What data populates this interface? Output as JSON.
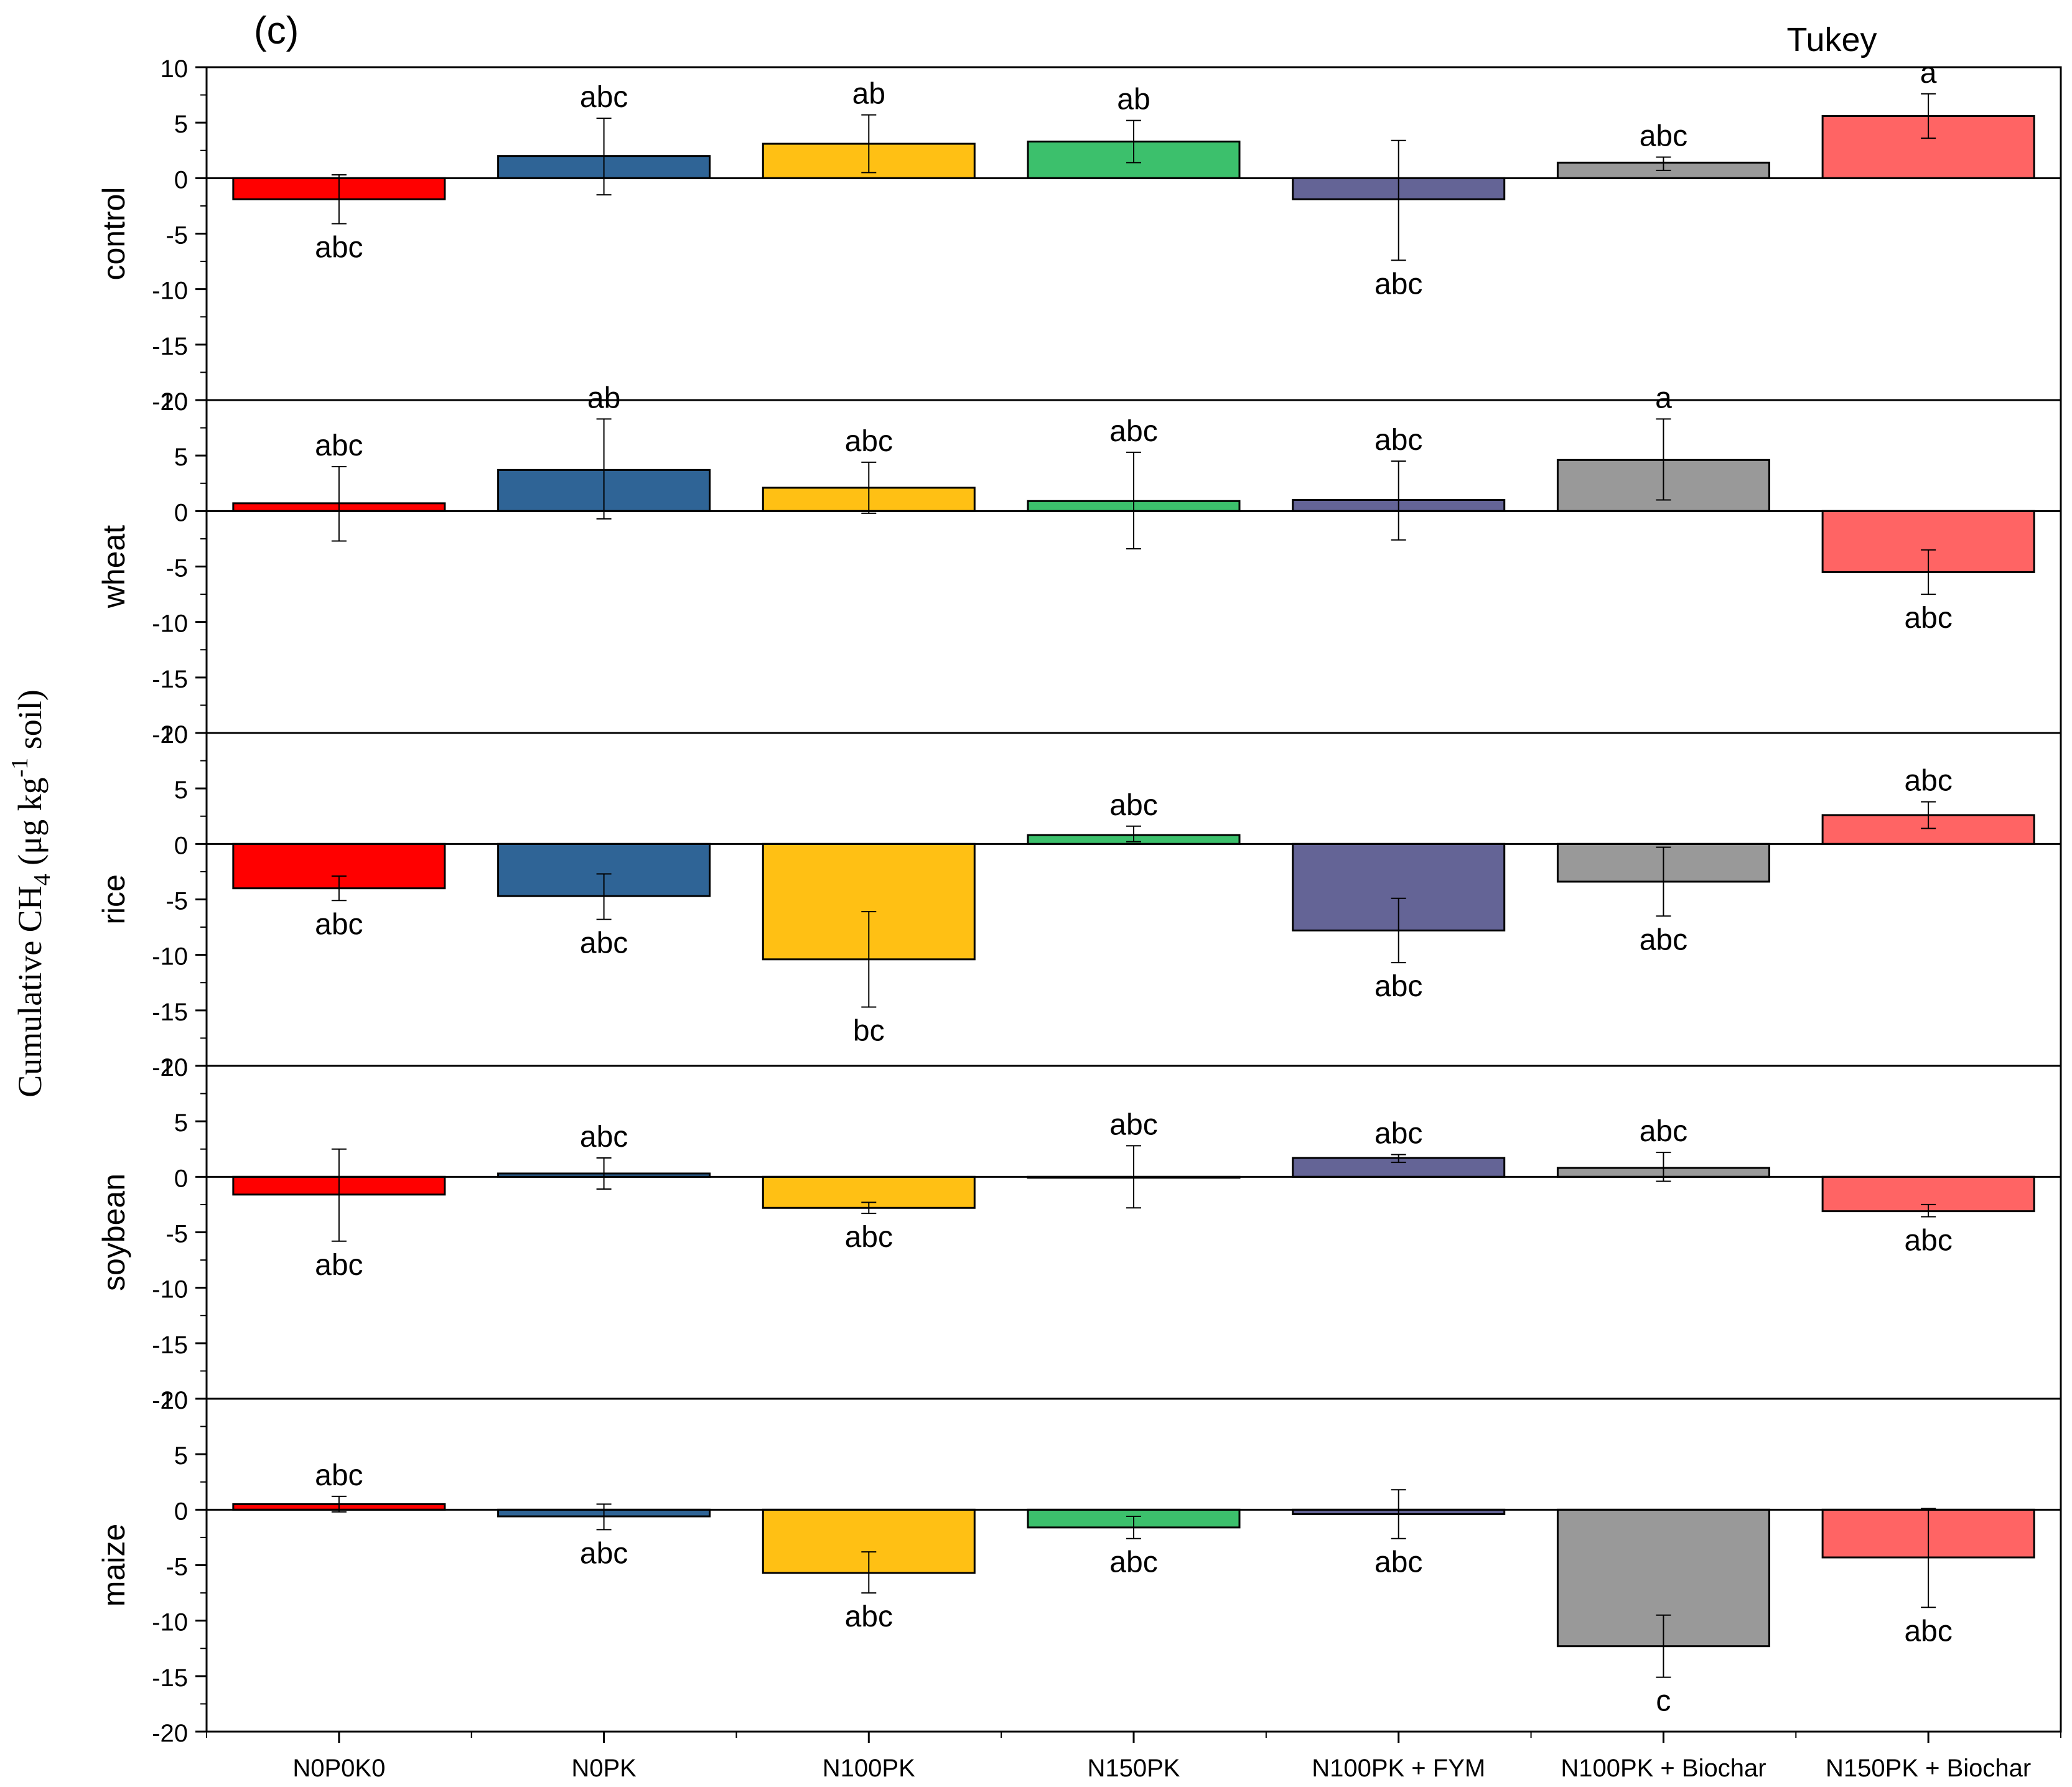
{
  "chart_data": {
    "type": "bar",
    "panel_label": "(c)",
    "test_label": "Tukey",
    "ylabel_main": "Cumulative CH",
    "ylabel_sub": "4",
    "ylabel_mid": " (μg kg",
    "ylabel_sup": "-1",
    "ylabel_end": " soil)",
    "categories": [
      "N0P0K0",
      "N0PK",
      "N100PK",
      "N150PK",
      "N100PK + FYM",
      "N100PK + Biochar",
      "N150PK + Biochar"
    ],
    "colors": [
      "#ff0000",
      "#2f6496",
      "#ffc014",
      "#3cc06c",
      "#646496",
      "#999999",
      "#ff6464"
    ],
    "ylim": [
      -20,
      10
    ],
    "yticks": [
      -20,
      -15,
      -10,
      -5,
      0,
      5,
      10
    ],
    "ytick_labels": [
      "-20",
      "-15",
      "-10",
      "-5",
      "0",
      "5",
      "10"
    ],
    "panels": [
      {
        "name": "control",
        "values": [
          -1.9,
          2.0,
          3.1,
          3.3,
          -1.9,
          1.4,
          5.6
        ],
        "err_low": [
          -4.1,
          -1.5,
          0.5,
          1.4,
          -7.4,
          0.7,
          3.6
        ],
        "err_high": [
          0.3,
          5.4,
          5.7,
          5.2,
          3.4,
          1.9,
          7.6
        ],
        "letters": [
          "abc",
          "abc",
          "ab",
          "ab",
          "abc",
          "abc",
          "a"
        ]
      },
      {
        "name": "wheat",
        "values": [
          0.7,
          3.7,
          2.1,
          0.9,
          1.0,
          4.6,
          -5.5
        ],
        "err_low": [
          -2.7,
          -0.7,
          -0.2,
          -3.4,
          -2.6,
          1.0,
          -7.5
        ],
        "err_high": [
          4.0,
          8.3,
          4.4,
          5.3,
          4.5,
          8.3,
          -3.5
        ],
        "letters": [
          "abc",
          "ab",
          "abc",
          "abc",
          "abc",
          "a",
          "abc"
        ]
      },
      {
        "name": "rice",
        "values": [
          -4.0,
          -4.7,
          -10.4,
          0.8,
          -7.8,
          -3.4,
          2.6
        ],
        "err_low": [
          -5.1,
          -6.8,
          -14.7,
          0.2,
          -10.7,
          -6.5,
          1.4
        ],
        "err_high": [
          -2.9,
          -2.7,
          -6.1,
          1.6,
          -4.9,
          -0.3,
          3.8
        ],
        "letters": [
          "abc",
          "abc",
          "bc",
          "abc",
          "abc",
          "abc",
          "abc"
        ]
      },
      {
        "name": "soybean",
        "values": [
          -1.6,
          0.3,
          -2.8,
          0.0,
          1.7,
          0.8,
          -3.1
        ],
        "err_low": [
          -5.8,
          -1.1,
          -3.3,
          -2.8,
          1.3,
          -0.4,
          -3.6
        ],
        "err_high": [
          2.5,
          1.7,
          -2.3,
          2.8,
          2.0,
          2.2,
          -2.5
        ],
        "letters": [
          "abc",
          "abc",
          "abc",
          "abc",
          "abc",
          "abc",
          "abc"
        ]
      },
      {
        "name": "maize",
        "values": [
          0.5,
          -0.6,
          -5.7,
          -1.6,
          -0.4,
          -12.3,
          -4.3
        ],
        "err_low": [
          -0.2,
          -1.8,
          -7.5,
          -2.6,
          -2.6,
          -15.1,
          -8.8
        ],
        "err_high": [
          1.2,
          0.5,
          -3.8,
          -0.6,
          1.8,
          -9.5,
          0.1
        ],
        "letters": [
          "abc",
          "abc",
          "abc",
          "abc",
          "abc",
          "c",
          "abc"
        ]
      }
    ]
  }
}
